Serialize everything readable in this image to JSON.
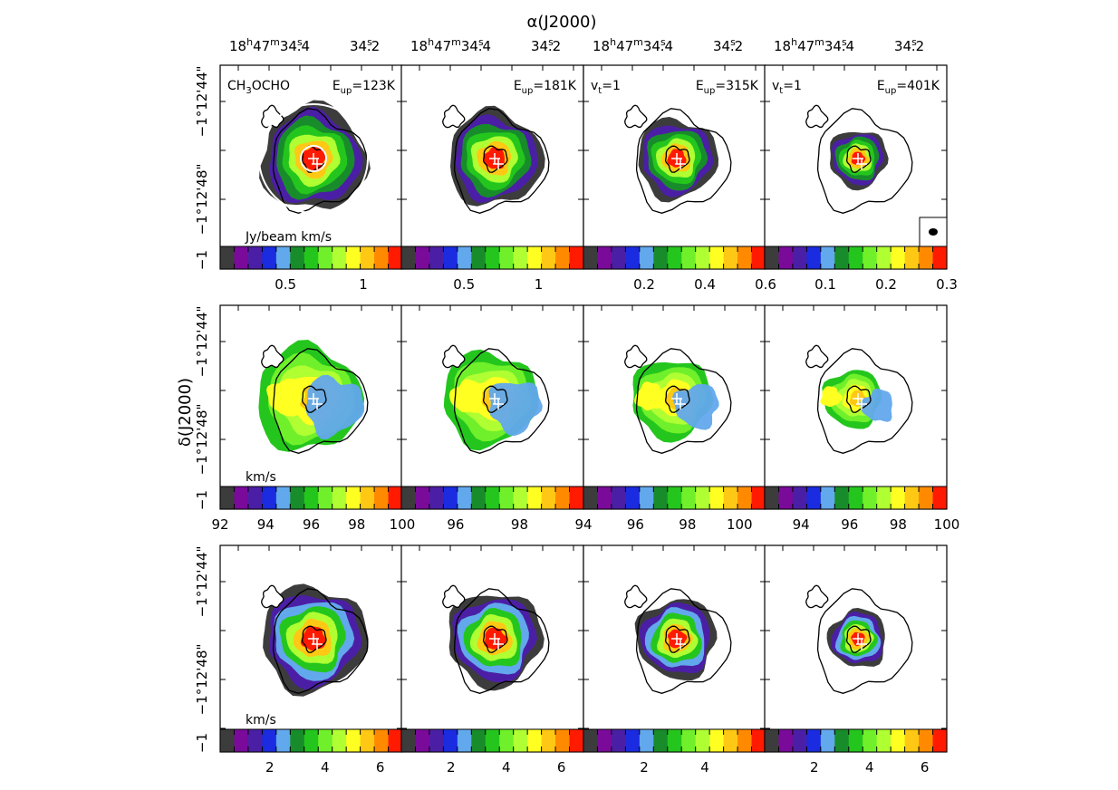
{
  "figure": {
    "xaxis_label": "α(J2000)",
    "yaxis_label": "δ(J2000)",
    "ra_ticks": [
      {
        "main": "18",
        "h": "h",
        "m1": "47",
        "m": "m",
        "s1": "34",
        "s": "s",
        "frac": ".4"
      },
      {
        "main": "34",
        "s": "s",
        "frac": ".2"
      }
    ],
    "dec_ticks": [
      "−1°12'44\"",
      "−1°12'48\"",
      "−1"
    ]
  },
  "columns": [
    {
      "molecule": "CH3OCHO",
      "state": "",
      "eup": "123K"
    },
    {
      "molecule": "",
      "state": "",
      "eup": "181K"
    },
    {
      "molecule": "",
      "state": "vt=1",
      "eup": "315K"
    },
    {
      "molecule": "",
      "state": "vt=1",
      "eup": "401K"
    }
  ],
  "text": {
    "mol_main": "CH",
    "mol_sub": "3",
    "mol_rest": "OCHO",
    "eup_E": "E",
    "eup_sub": "up",
    "eq": "=",
    "vt_v": "v",
    "vt_sub": "t",
    "vt_eq": "=1"
  },
  "rows": [
    {
      "unit": "Jy/beam km/s",
      "colorbars": [
        {
          "ticks": [
            "0.5",
            "1"
          ],
          "values": [
            0.5,
            1
          ],
          "range": [
            0.08,
            1.25
          ]
        },
        {
          "ticks": [
            "0.5",
            "1"
          ],
          "values": [
            0.5,
            1
          ],
          "range": [
            0.08,
            1.3
          ]
        },
        {
          "ticks": [
            "0.2",
            "0.4",
            "0.6"
          ],
          "values": [
            0.2,
            0.4,
            0.6
          ],
          "range": [
            0.0,
            0.6
          ]
        },
        {
          "ticks": [
            "0.1",
            "0.2",
            "0.3"
          ],
          "values": [
            0.1,
            0.2,
            0.3
          ],
          "range": [
            0.0,
            0.3
          ]
        }
      ]
    },
    {
      "unit": "km/s",
      "colorbars": [
        {
          "ticks": [
            "92",
            "94",
            "96",
            "98",
            "100"
          ],
          "values": [
            92,
            94,
            96,
            98,
            100
          ],
          "range": [
            92,
            100
          ]
        },
        {
          "ticks": [
            "96",
            "98"
          ],
          "values": [
            96,
            98
          ],
          "range": [
            94.3,
            100
          ]
        },
        {
          "ticks": [
            "94",
            "96",
            "98",
            "100"
          ],
          "values": [
            94,
            96,
            98,
            100
          ],
          "range": [
            94,
            101
          ]
        },
        {
          "ticks": [
            "94",
            "96",
            "98",
            "100"
          ],
          "values": [
            94,
            96,
            98,
            100
          ],
          "range": [
            92.5,
            100
          ]
        }
      ]
    },
    {
      "unit": "km/s",
      "colorbars": [
        {
          "ticks": [
            "2",
            "4",
            "6"
          ],
          "values": [
            2,
            4,
            6
          ],
          "range": [
            0.2,
            6.8
          ]
        },
        {
          "ticks": [
            "2",
            "4",
            "6"
          ],
          "values": [
            2,
            4,
            6
          ],
          "range": [
            0.2,
            6.8
          ]
        },
        {
          "ticks": [
            "2",
            "4"
          ],
          "values": [
            2,
            4
          ],
          "range": [
            0.0,
            6.0
          ]
        },
        {
          "ticks": [
            "2",
            "4",
            "6"
          ],
          "values": [
            2,
            4,
            6
          ],
          "range": [
            0.2,
            6.8
          ]
        }
      ]
    }
  ],
  "colors": {
    "palette": [
      "#3c3c3c",
      "#7a0a9a",
      "#4b1fa5",
      "#1a2be0",
      "#62a8ec",
      "#188c2a",
      "#24c61d",
      "#70f02a",
      "#b0ff32",
      "#ffff22",
      "#ffc814",
      "#ff8a00",
      "#ff1a00"
    ]
  }
}
